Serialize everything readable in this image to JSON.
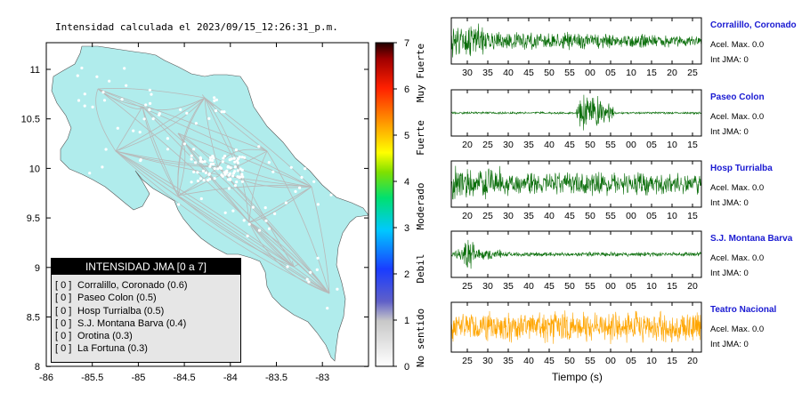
{
  "map": {
    "title": "Intensidad calculada el 2023/09/15_12:26:31_p.m.",
    "x_ticks": [
      "-86",
      "-85.5",
      "-85",
      "-84.5",
      "-84",
      "-83.5",
      "-83"
    ],
    "y_ticks": [
      "11",
      "10.5",
      "10",
      "9.5",
      "9",
      "8.5",
      "8"
    ],
    "land_color": "#b0ecec",
    "road_color": "#b8b8b8"
  },
  "colorbar": {
    "ticks": [
      "7",
      "6",
      "5",
      "4",
      "3",
      "2",
      "1",
      "0"
    ],
    "labels": [
      "Muy Fuerte",
      "Fuerte",
      "Moderado",
      "Debil",
      "No sentido"
    ]
  },
  "legend": {
    "header": "INTENSIDAD JMA [0 a 7]",
    "items": [
      {
        "bracket": "[ 0 ]",
        "label": "Corralillo, Coronado (0.6)"
      },
      {
        "bracket": "[ 0 ]",
        "label": "Paseo Colon (0.5)"
      },
      {
        "bracket": "[ 0 ]",
        "label": "Hosp Turrialba (0.5)"
      },
      {
        "bracket": "[ 0 ]",
        "label": "S.J. Montana Barva (0.4)"
      },
      {
        "bracket": "[ 0 ]",
        "label": "Orotina (0.3)"
      },
      {
        "bracket": "[ 0 ]",
        "label": "La Fortuna (0.3)"
      }
    ]
  },
  "chart_data": {
    "type": "line",
    "xlabel": "Tiempo (s)",
    "traces": [
      {
        "name": "Corralillo, Coronado",
        "acel": "Acel. Max. 0.0",
        "int": "Int JMA: 0",
        "ticks": [
          "30",
          "35",
          "40",
          "45",
          "50",
          "55",
          "00",
          "05",
          "10",
          "15",
          "20",
          "25"
        ],
        "color": "#0a6e0a"
      },
      {
        "name": "Paseo Colon",
        "acel": "Acel. Max. 0.0",
        "int": "Int JMA: 0",
        "ticks": [
          "20",
          "25",
          "30",
          "35",
          "40",
          "45",
          "50",
          "55",
          "00",
          "05",
          "10",
          "15"
        ],
        "color": "#0a6e0a"
      },
      {
        "name": "Hosp Turrialba",
        "acel": "Acel. Max. 0.0",
        "int": "Int JMA: 0",
        "ticks": [
          "20",
          "25",
          "30",
          "35",
          "40",
          "45",
          "50",
          "55",
          "00",
          "05",
          "10",
          "15"
        ],
        "color": "#0a6e0a"
      },
      {
        "name": "S.J. Montana Barva",
        "acel": "Acel. Max. 0.0",
        "int": "Int JMA: 0",
        "ticks": [
          "25",
          "30",
          "35",
          "40",
          "45",
          "50",
          "55",
          "00",
          "05",
          "10",
          "15",
          "20"
        ],
        "color": "#0a6e0a"
      },
      {
        "name": "Teatro Nacional",
        "acel": "Acel. Max. 0.0",
        "int": "Int JMA: 0",
        "ticks": [
          "25",
          "30",
          "35",
          "40",
          "45",
          "50",
          "55",
          "00",
          "05",
          "10",
          "15",
          "20"
        ],
        "color": "#ffa500"
      }
    ]
  }
}
